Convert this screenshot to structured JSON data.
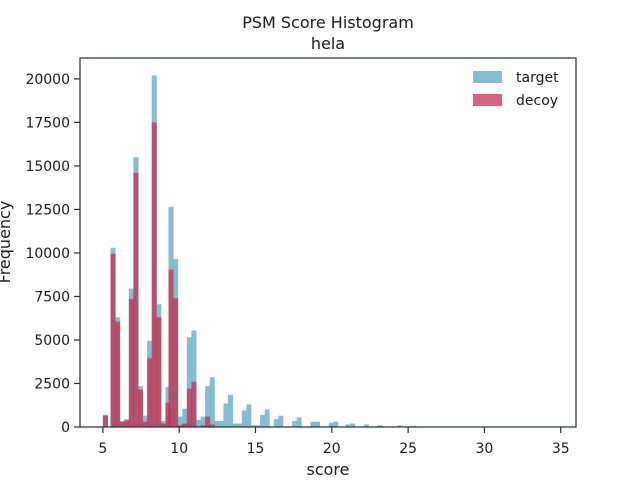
{
  "chart_data": {
    "type": "bar",
    "title": "PSM Score Histogram",
    "subtitle": "hela",
    "xlabel": "score",
    "ylabel": "Frequency",
    "xlim": [
      3.5,
      36.0
    ],
    "ylim": [
      0,
      21200
    ],
    "x_ticks": [
      5,
      10,
      15,
      20,
      25,
      30,
      35
    ],
    "y_ticks": [
      0,
      2500,
      5000,
      7500,
      10000,
      12500,
      15000,
      17500,
      20000
    ],
    "bin_width": 0.33,
    "grid": false,
    "legend_position": "top-right",
    "series": [
      {
        "name": "target",
        "color": "#80b8cc",
        "bins": [
          [
            5.0,
            700
          ],
          [
            5.5,
            10300
          ],
          [
            5.8,
            6300
          ],
          [
            6.1,
            350
          ],
          [
            6.4,
            450
          ],
          [
            6.7,
            7950
          ],
          [
            7.0,
            15500
          ],
          [
            7.3,
            2350
          ],
          [
            7.6,
            650
          ],
          [
            7.9,
            4950
          ],
          [
            8.2,
            20200
          ],
          [
            8.5,
            7050
          ],
          [
            8.8,
            350
          ],
          [
            9.1,
            2300
          ],
          [
            9.3,
            12650
          ],
          [
            9.6,
            9650
          ],
          [
            9.9,
            600
          ],
          [
            10.2,
            1050
          ],
          [
            10.5,
            5150
          ],
          [
            10.8,
            5550
          ],
          [
            11.1,
            400
          ],
          [
            11.4,
            600
          ],
          [
            11.7,
            2350
          ],
          [
            12.0,
            2850
          ],
          [
            12.3,
            350
          ],
          [
            12.6,
            350
          ],
          [
            12.9,
            1350
          ],
          [
            13.2,
            1850
          ],
          [
            13.5,
            200
          ],
          [
            13.8,
            200
          ],
          [
            14.1,
            950
          ],
          [
            14.4,
            1300
          ],
          [
            14.7,
            100
          ],
          [
            15.0,
            100
          ],
          [
            15.3,
            700
          ],
          [
            15.6,
            1000
          ],
          [
            16.2,
            450
          ],
          [
            16.5,
            650
          ],
          [
            17.4,
            350
          ],
          [
            17.7,
            550
          ],
          [
            18.6,
            300
          ],
          [
            18.9,
            300
          ],
          [
            19.8,
            250
          ],
          [
            20.1,
            300
          ],
          [
            20.9,
            150
          ],
          [
            21.2,
            200
          ],
          [
            22.1,
            150
          ],
          [
            23.0,
            100
          ],
          [
            24.3,
            100
          ],
          [
            25.2,
            60
          ]
        ]
      },
      {
        "name": "decoy",
        "color": "#c8284a",
        "bins": [
          [
            5.0,
            650
          ],
          [
            5.5,
            9950
          ],
          [
            5.8,
            6050
          ],
          [
            6.1,
            300
          ],
          [
            6.4,
            380
          ],
          [
            6.7,
            7350
          ],
          [
            7.0,
            14600
          ],
          [
            7.3,
            2150
          ],
          [
            7.6,
            300
          ],
          [
            7.9,
            3950
          ],
          [
            8.2,
            17500
          ],
          [
            8.5,
            6300
          ],
          [
            8.8,
            200
          ],
          [
            9.1,
            1400
          ],
          [
            9.3,
            9050
          ],
          [
            9.6,
            7400
          ],
          [
            9.9,
            100
          ],
          [
            10.2,
            200
          ],
          [
            10.5,
            2200
          ],
          [
            10.8,
            2600
          ],
          [
            11.4,
            100
          ],
          [
            11.7,
            600
          ],
          [
            12.0,
            150
          ]
        ]
      }
    ]
  }
}
